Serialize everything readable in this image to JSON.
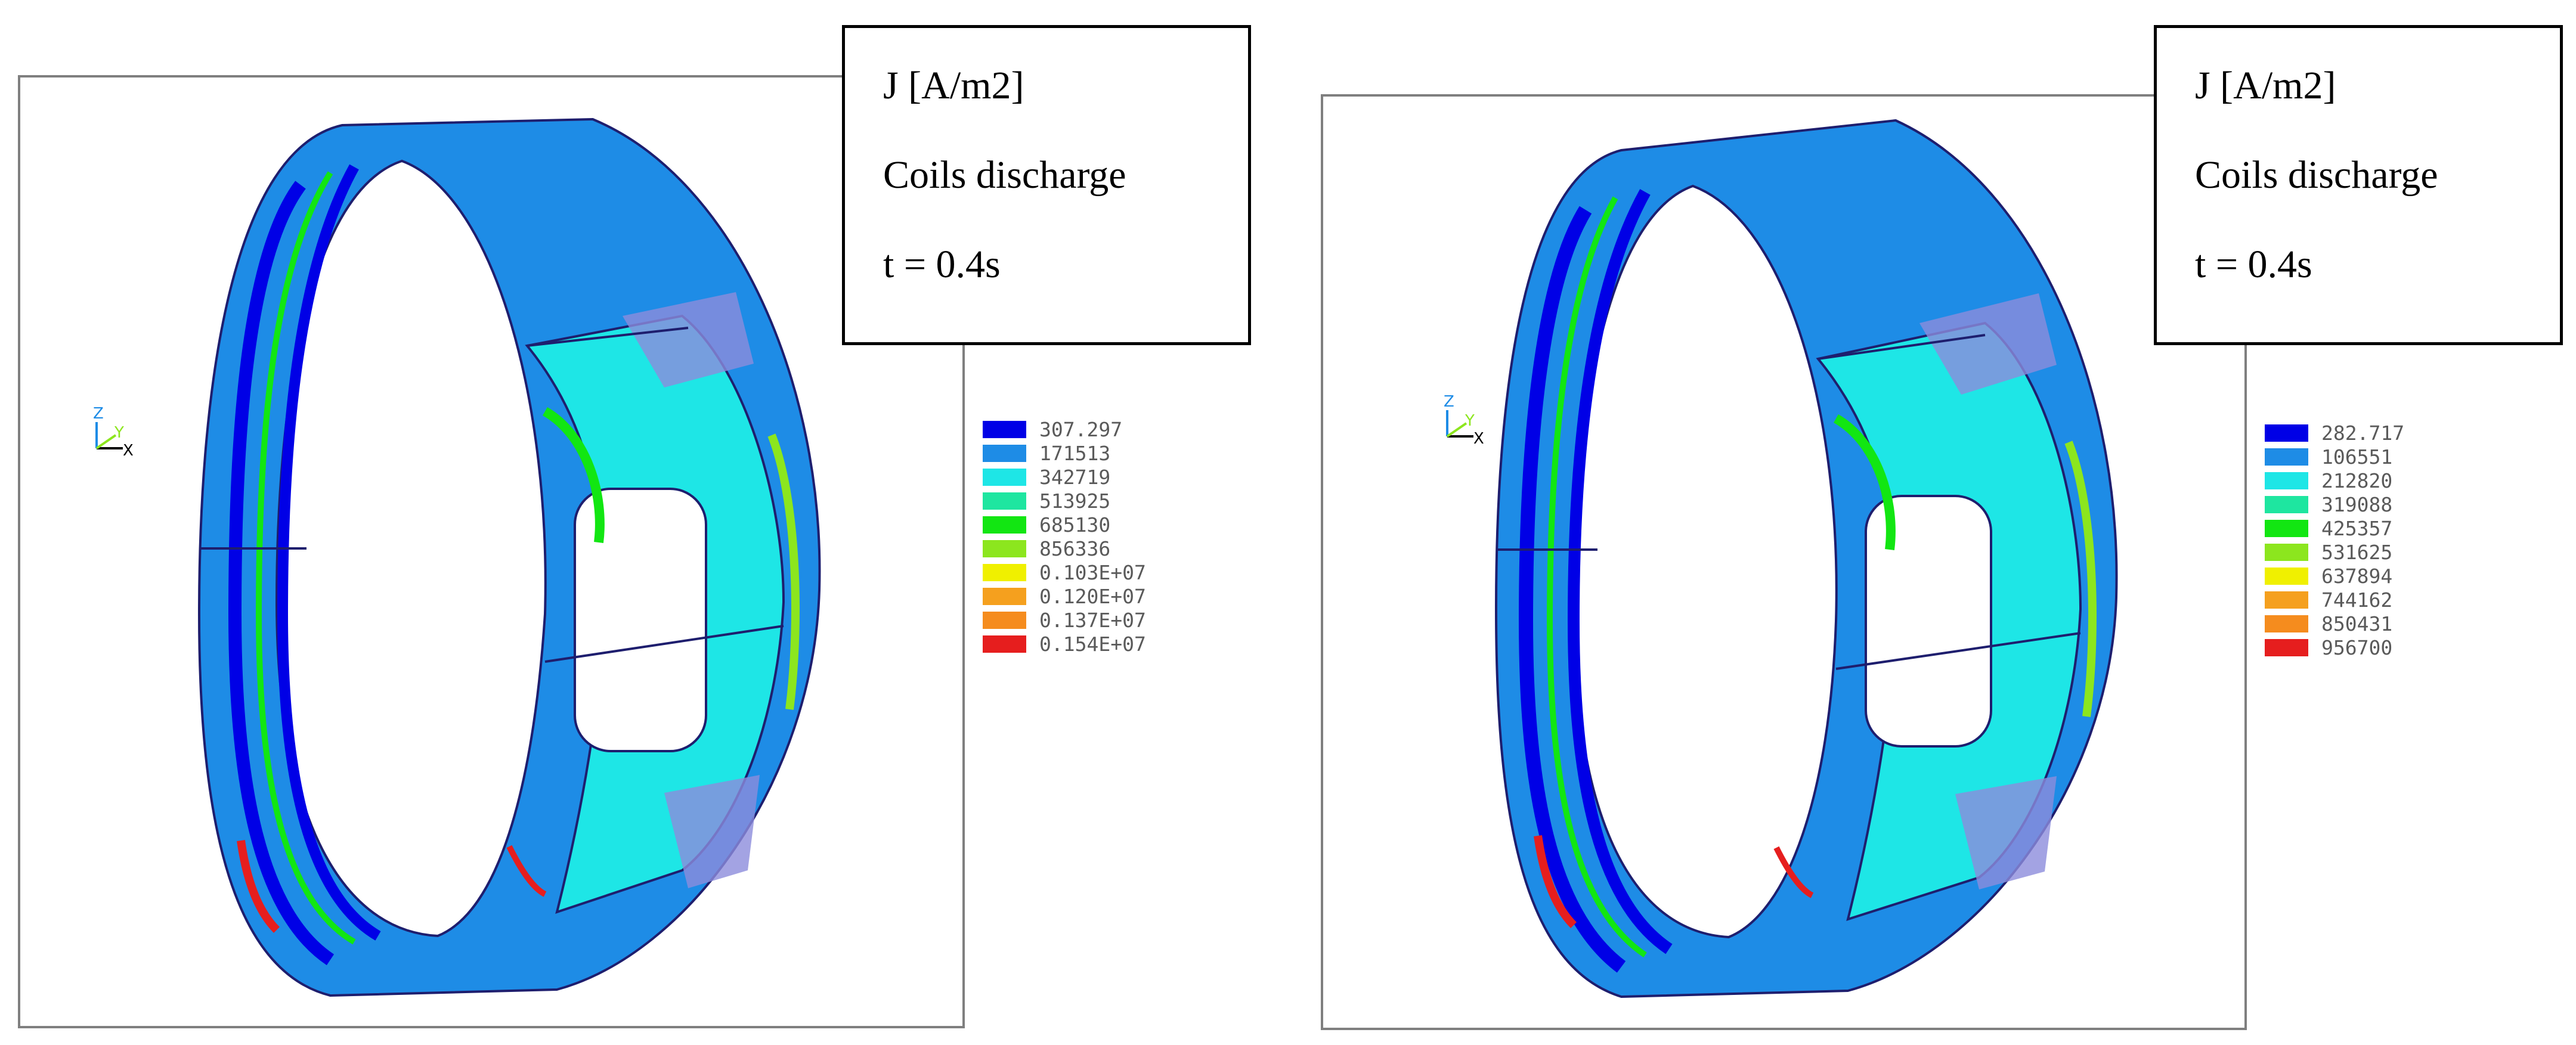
{
  "panels": [
    {
      "info": {
        "quantity": "J [A/m2]",
        "scenario": "Coils discharge",
        "time": "t = 0.4s"
      },
      "axes": {
        "z": "Z",
        "y": "Y",
        "x": "X"
      },
      "legend": {
        "labels": [
          "307.297",
          "171513",
          "342719",
          "513925",
          "685130",
          "856336",
          "0.103E+07",
          "0.120E+07",
          "0.137E+07",
          "0.154E+07"
        ]
      }
    },
    {
      "info": {
        "quantity": "J [A/m2]",
        "scenario": "Coils discharge",
        "time": "t = 0.4s"
      },
      "axes": {
        "z": "Z",
        "y": "Y",
        "x": "X"
      },
      "legend": {
        "labels": [
          "282.717",
          "106551",
          "212820",
          "319088",
          "425357",
          "531625",
          "637894",
          "744162",
          "850431",
          "956700"
        ]
      }
    }
  ],
  "colors": {
    "contour_scale": [
      "#0000e6",
      "#1e8ce6",
      "#1ee6e6",
      "#1ee6a0",
      "#12e612",
      "#8ce61e",
      "#f0f000",
      "#f5a01e",
      "#f58c1e",
      "#e61e1e"
    ],
    "panel_border": "#7f7f7f"
  }
}
